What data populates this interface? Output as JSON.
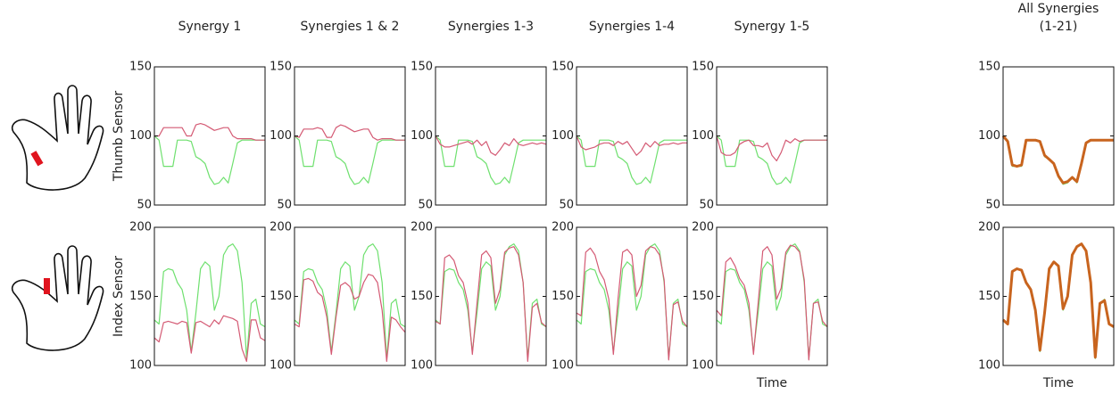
{
  "chart_data": [
    {
      "type": "line",
      "title": [
        "Synergy 1"
      ],
      "ylabel": "Thumb Sensor",
      "ylim": [
        50,
        150
      ],
      "yticks": [
        50,
        100,
        150
      ],
      "series": [
        {
          "color": "#6fe06f",
          "values": [
            100,
            97,
            78,
            78,
            78,
            97,
            97,
            97,
            96,
            85,
            83,
            80,
            70,
            65,
            66,
            70,
            66,
            80,
            95,
            97,
            97,
            97,
            97,
            97,
            97
          ]
        },
        {
          "color": "#d45a74",
          "values": [
            100,
            100,
            106,
            106,
            106,
            106,
            106,
            100,
            100,
            108,
            109,
            108,
            106,
            104,
            105,
            106,
            106,
            100,
            98,
            98,
            98,
            98,
            97,
            97,
            97
          ]
        }
      ]
    },
    {
      "type": "line",
      "title": [
        "Synergies 1 & 2"
      ],
      "ylim": [
        50,
        150
      ],
      "yticks": [
        50,
        100,
        150
      ],
      "series": [
        {
          "color": "#6fe06f",
          "values": [
            100,
            97,
            78,
            78,
            78,
            97,
            97,
            97,
            96,
            85,
            83,
            80,
            70,
            65,
            66,
            70,
            66,
            80,
            95,
            97,
            97,
            97,
            97,
            97,
            97
          ]
        },
        {
          "color": "#d45a74",
          "values": [
            100,
            99,
            105,
            105,
            105,
            106,
            105,
            99,
            99,
            106,
            108,
            107,
            105,
            103,
            104,
            105,
            105,
            99,
            97,
            98,
            98,
            98,
            97,
            97,
            97
          ]
        }
      ]
    },
    {
      "type": "line",
      "title": [
        "Synergies 1-3"
      ],
      "ylim": [
        50,
        150
      ],
      "yticks": [
        50,
        100,
        150
      ],
      "series": [
        {
          "color": "#6fe06f",
          "values": [
            100,
            97,
            78,
            78,
            78,
            97,
            97,
            97,
            96,
            85,
            83,
            80,
            70,
            65,
            66,
            70,
            66,
            80,
            95,
            97,
            97,
            97,
            97,
            97,
            97
          ]
        },
        {
          "color": "#d45a74",
          "values": [
            100,
            94,
            92,
            92,
            93,
            94,
            95,
            96,
            94,
            97,
            93,
            96,
            88,
            86,
            90,
            95,
            93,
            98,
            94,
            93,
            94,
            95,
            94,
            95,
            94
          ]
        }
      ]
    },
    {
      "type": "line",
      "title": [
        "Synergies 1-4"
      ],
      "ylim": [
        50,
        150
      ],
      "yticks": [
        50,
        100,
        150
      ],
      "series": [
        {
          "color": "#6fe06f",
          "values": [
            100,
            97,
            78,
            78,
            78,
            97,
            97,
            97,
            96,
            85,
            83,
            80,
            70,
            65,
            66,
            70,
            66,
            80,
            95,
            97,
            97,
            97,
            97,
            97,
            97
          ]
        },
        {
          "color": "#d45a74",
          "values": [
            100,
            92,
            90,
            91,
            92,
            94,
            95,
            95,
            93,
            96,
            94,
            96,
            91,
            86,
            89,
            95,
            92,
            96,
            93,
            94,
            94,
            95,
            94,
            95,
            95
          ]
        }
      ]
    },
    {
      "type": "line",
      "title": [
        "Synergy 1-5"
      ],
      "ylim": [
        50,
        150
      ],
      "yticks": [
        50,
        100,
        150
      ],
      "series": [
        {
          "color": "#6fe06f",
          "values": [
            100,
            97,
            78,
            78,
            78,
            97,
            97,
            97,
            96,
            85,
            83,
            80,
            70,
            65,
            66,
            70,
            66,
            80,
            95,
            97,
            97,
            97,
            97,
            97,
            97
          ]
        },
        {
          "color": "#d45a74",
          "values": [
            100,
            88,
            86,
            86,
            88,
            94,
            96,
            97,
            93,
            93,
            92,
            95,
            86,
            82,
            88,
            97,
            95,
            98,
            96,
            97,
            97,
            97,
            97,
            97,
            97
          ]
        }
      ]
    },
    {
      "type": "line",
      "title": [
        "All Synergies",
        "(1-21)"
      ],
      "ylim": [
        50,
        150
      ],
      "yticks": [
        50,
        100,
        150
      ],
      "series": [
        {
          "color": "#6fe06f",
          "values": [
            100,
            97,
            78,
            78,
            78,
            97,
            97,
            97,
            96,
            85,
            83,
            80,
            70,
            65,
            66,
            70,
            66,
            80,
            95,
            97,
            97,
            97,
            97,
            97,
            97
          ]
        },
        {
          "color": "#c8641e",
          "values": [
            100,
            96,
            79,
            78,
            79,
            97,
            97,
            97,
            96,
            86,
            83,
            80,
            71,
            66,
            67,
            70,
            67,
            80,
            95,
            97,
            97,
            97,
            97,
            97,
            97
          ]
        }
      ]
    },
    {
      "type": "line",
      "ylabel": "Index Sensor",
      "ylim": [
        100,
        200
      ],
      "yticks": [
        100,
        150,
        200
      ],
      "series": [
        {
          "color": "#6fe06f",
          "values": [
            133,
            130,
            168,
            170,
            169,
            160,
            155,
            140,
            110,
            138,
            170,
            175,
            172,
            140,
            150,
            180,
            186,
            188,
            183,
            160,
            105,
            145,
            148,
            130,
            128
          ]
        },
        {
          "color": "#d45a74",
          "values": [
            120,
            117,
            131,
            132,
            131,
            130,
            132,
            131,
            109,
            131,
            132,
            130,
            128,
            133,
            130,
            136,
            135,
            134,
            132,
            112,
            103,
            133,
            133,
            120,
            118
          ]
        }
      ]
    },
    {
      "type": "line",
      "ylim": [
        100,
        200
      ],
      "yticks": [
        100,
        150,
        200
      ],
      "series": [
        {
          "color": "#6fe06f",
          "values": [
            133,
            130,
            168,
            170,
            169,
            160,
            155,
            140,
            110,
            138,
            170,
            175,
            172,
            140,
            150,
            180,
            186,
            188,
            183,
            160,
            105,
            145,
            148,
            130,
            128
          ]
        },
        {
          "color": "#d45a74",
          "values": [
            130,
            128,
            162,
            163,
            161,
            153,
            150,
            135,
            108,
            135,
            158,
            160,
            157,
            148,
            150,
            160,
            166,
            165,
            160,
            140,
            103,
            135,
            133,
            128,
            124
          ]
        }
      ]
    },
    {
      "type": "line",
      "ylim": [
        100,
        200
      ],
      "yticks": [
        100,
        150,
        200
      ],
      "series": [
        {
          "color": "#6fe06f",
          "values": [
            133,
            130,
            168,
            170,
            169,
            160,
            155,
            140,
            110,
            138,
            170,
            175,
            172,
            140,
            150,
            180,
            186,
            188,
            183,
            160,
            105,
            145,
            148,
            130,
            128
          ]
        },
        {
          "color": "#d45a74",
          "values": [
            132,
            130,
            178,
            180,
            176,
            165,
            160,
            145,
            108,
            145,
            180,
            183,
            178,
            145,
            155,
            182,
            185,
            186,
            180,
            160,
            103,
            142,
            145,
            131,
            128
          ]
        }
      ]
    },
    {
      "type": "line",
      "ylim": [
        100,
        200
      ],
      "yticks": [
        100,
        150,
        200
      ],
      "series": [
        {
          "color": "#6fe06f",
          "values": [
            133,
            130,
            168,
            170,
            169,
            160,
            155,
            140,
            110,
            138,
            170,
            175,
            172,
            140,
            150,
            180,
            186,
            188,
            183,
            160,
            105,
            145,
            148,
            130,
            128
          ]
        },
        {
          "color": "#d45a74",
          "values": [
            138,
            136,
            182,
            185,
            180,
            168,
            162,
            148,
            108,
            148,
            182,
            184,
            180,
            150,
            158,
            183,
            186,
            185,
            180,
            162,
            104,
            144,
            146,
            132,
            128
          ]
        }
      ]
    },
    {
      "type": "line",
      "ylim": [
        100,
        200
      ],
      "yticks": [
        100,
        150,
        200
      ],
      "xlabel": "Time",
      "series": [
        {
          "color": "#6fe06f",
          "values": [
            133,
            130,
            168,
            170,
            169,
            160,
            155,
            140,
            110,
            138,
            170,
            175,
            172,
            140,
            150,
            180,
            186,
            188,
            183,
            160,
            105,
            145,
            148,
            130,
            128
          ]
        },
        {
          "color": "#d45a74",
          "values": [
            140,
            136,
            175,
            178,
            172,
            163,
            158,
            145,
            108,
            145,
            183,
            186,
            180,
            148,
            156,
            182,
            187,
            186,
            182,
            162,
            104,
            145,
            146,
            132,
            128
          ]
        }
      ]
    },
    {
      "type": "line",
      "ylim": [
        100,
        200
      ],
      "yticks": [
        100,
        150,
        200
      ],
      "xlabel": "Time",
      "series": [
        {
          "color": "#6fe06f",
          "values": [
            133,
            130,
            168,
            170,
            169,
            160,
            155,
            140,
            110,
            138,
            170,
            175,
            172,
            140,
            150,
            180,
            186,
            188,
            183,
            160,
            105,
            145,
            148,
            130,
            128
          ]
        },
        {
          "color": "#c8641e",
          "values": [
            133,
            130,
            168,
            170,
            169,
            160,
            155,
            140,
            111,
            138,
            170,
            175,
            172,
            141,
            150,
            180,
            186,
            188,
            183,
            160,
            106,
            145,
            147,
            130,
            128
          ]
        }
      ]
    }
  ]
}
